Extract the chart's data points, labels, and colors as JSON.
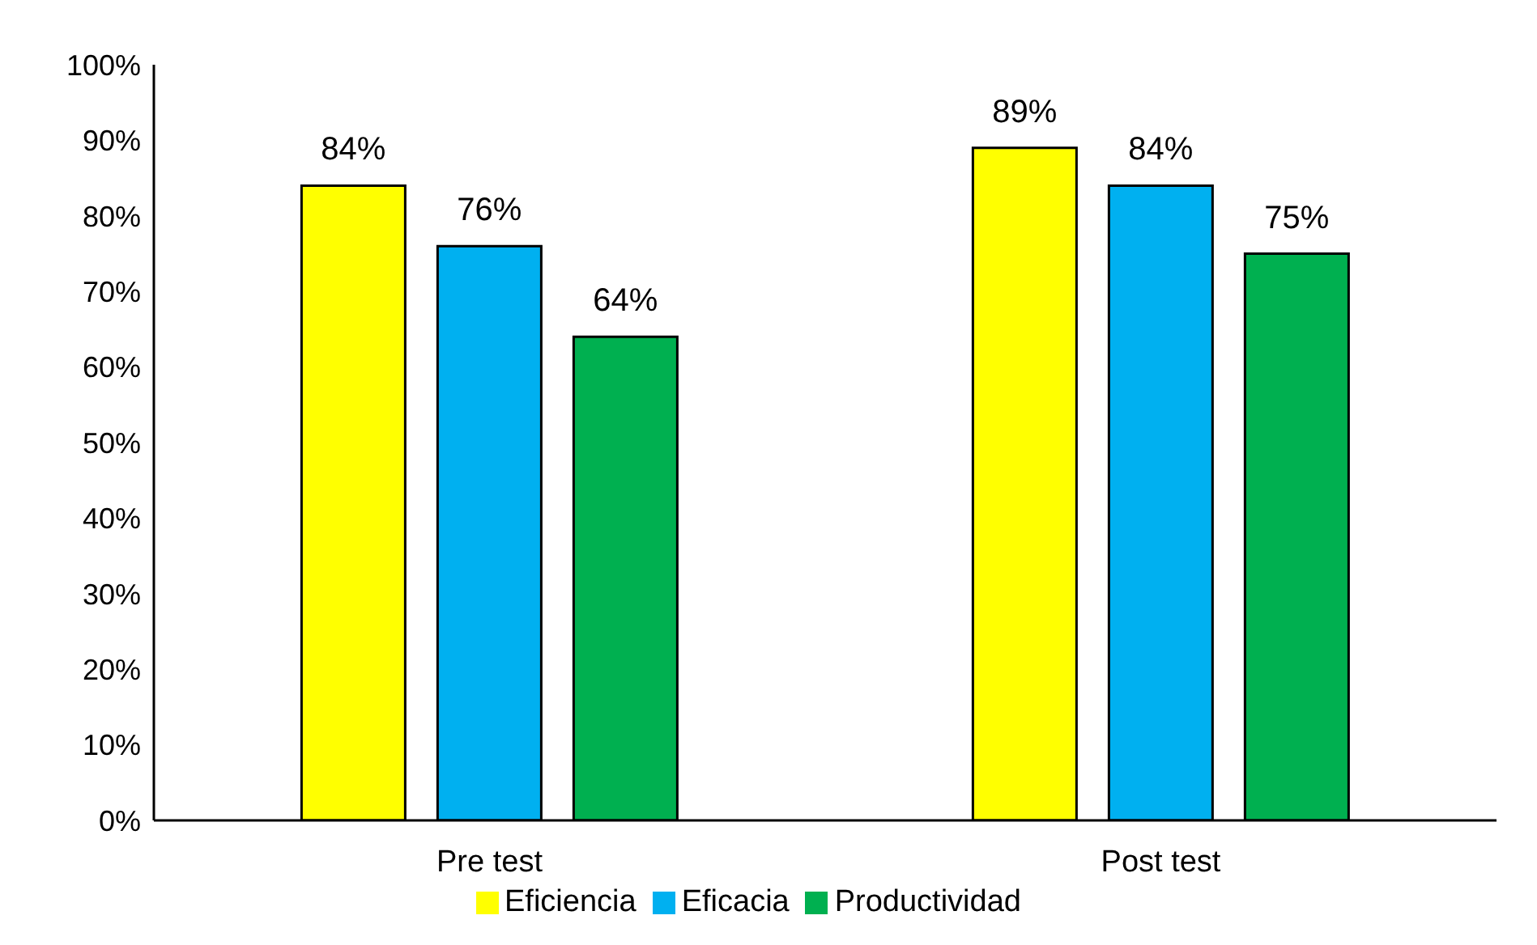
{
  "chart_data": {
    "type": "bar",
    "categories": [
      "Pre test",
      "Post test"
    ],
    "series": [
      {
        "name": "Eficiencia",
        "color": "#ffff00",
        "values": [
          84,
          89
        ],
        "value_labels": [
          "84%",
          "89%"
        ]
      },
      {
        "name": "Eficacia",
        "color": "#00b0f0",
        "values": [
          76,
          84
        ],
        "value_labels": [
          "76%",
          "84%"
        ]
      },
      {
        "name": "Productividad",
        "color": "#00b050",
        "values": [
          64,
          75
        ],
        "value_labels": [
          "64%",
          "75%"
        ]
      }
    ],
    "ylim": [
      0,
      100
    ],
    "yticks": [
      {
        "value": 0,
        "label": "0%"
      },
      {
        "value": 10,
        "label": "10%"
      },
      {
        "value": 20,
        "label": "20%"
      },
      {
        "value": 30,
        "label": "30%"
      },
      {
        "value": 40,
        "label": "40%"
      },
      {
        "value": 50,
        "label": "50%"
      },
      {
        "value": 60,
        "label": "60%"
      },
      {
        "value": 70,
        "label": "70%"
      },
      {
        "value": 80,
        "label": "80%"
      },
      {
        "value": 90,
        "label": "90%"
      },
      {
        "value": 100,
        "label": "100%"
      }
    ],
    "grid": false,
    "legend": "bottom"
  }
}
